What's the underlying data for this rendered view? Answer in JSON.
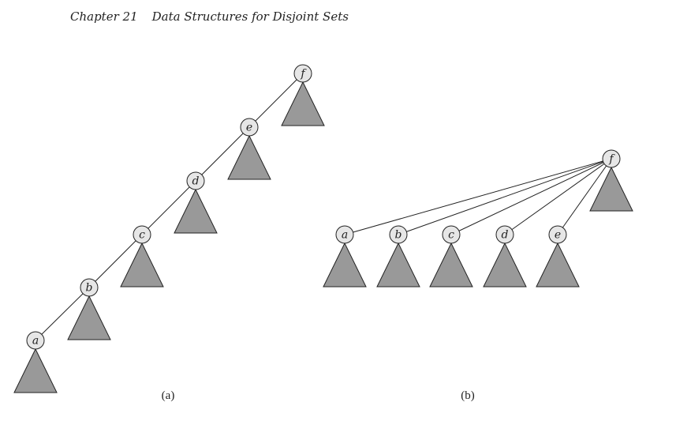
{
  "header": {
    "chapter": "Chapter 21",
    "title": "Data Structures for Disjoint Sets"
  },
  "colors": {
    "subtree_fill": "#999999",
    "node_fill": "#e6e6e6",
    "stroke": "#222222"
  },
  "panel_a": {
    "caption": "(a)",
    "nodes": [
      "a",
      "b",
      "c",
      "d",
      "e",
      "f"
    ],
    "edges": [
      [
        "a",
        "b"
      ],
      [
        "b",
        "c"
      ],
      [
        "c",
        "d"
      ],
      [
        "d",
        "e"
      ],
      [
        "e",
        "f"
      ]
    ]
  },
  "panel_b": {
    "caption": "(b)",
    "root": "f",
    "children": [
      "a",
      "b",
      "c",
      "d",
      "e"
    ]
  }
}
